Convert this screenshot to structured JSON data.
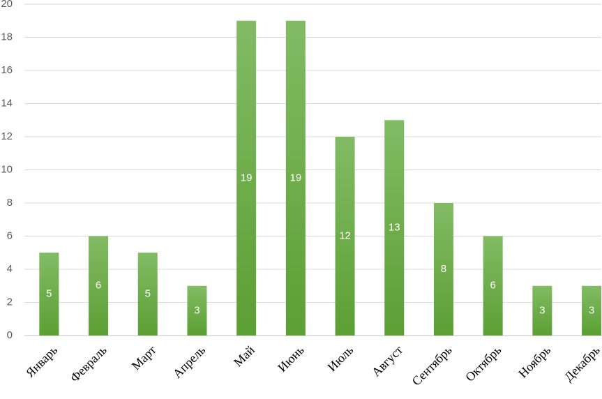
{
  "chart_data": {
    "type": "bar",
    "categories": [
      "Январь",
      "Февраль",
      "Март",
      "Апрель",
      "Май",
      "Июнь",
      "Июль",
      "Август",
      "Сентябрь",
      "Октябрь",
      "Ноябрь",
      "Декабрь"
    ],
    "values": [
      5,
      6,
      5,
      3,
      19,
      19,
      12,
      13,
      8,
      6,
      3,
      3
    ],
    "color": "#6aab45",
    "ylim": [
      0,
      20
    ],
    "yticks": [
      0,
      2,
      4,
      6,
      8,
      10,
      12,
      14,
      16,
      18,
      20
    ],
    "grid": true
  }
}
